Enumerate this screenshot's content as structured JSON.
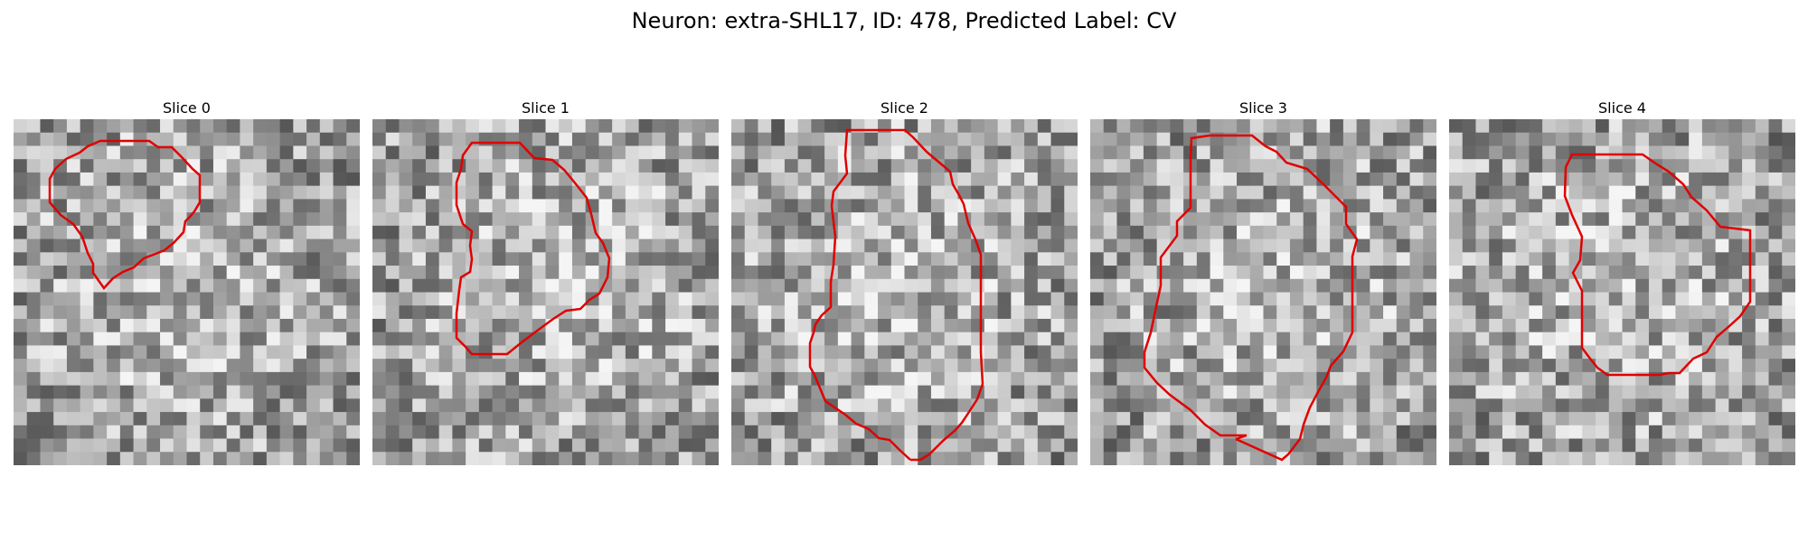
{
  "figure": {
    "title": "Neuron: extra-SHL17, ID: 478, Predicted Label: CV",
    "contour_color": "#e00000",
    "colormap": "gray"
  },
  "panels": [
    {
      "title": "Slice 0"
    },
    {
      "title": "Slice 1"
    },
    {
      "title": "Slice 2"
    },
    {
      "title": "Slice 3"
    },
    {
      "title": "Slice 4"
    }
  ]
}
